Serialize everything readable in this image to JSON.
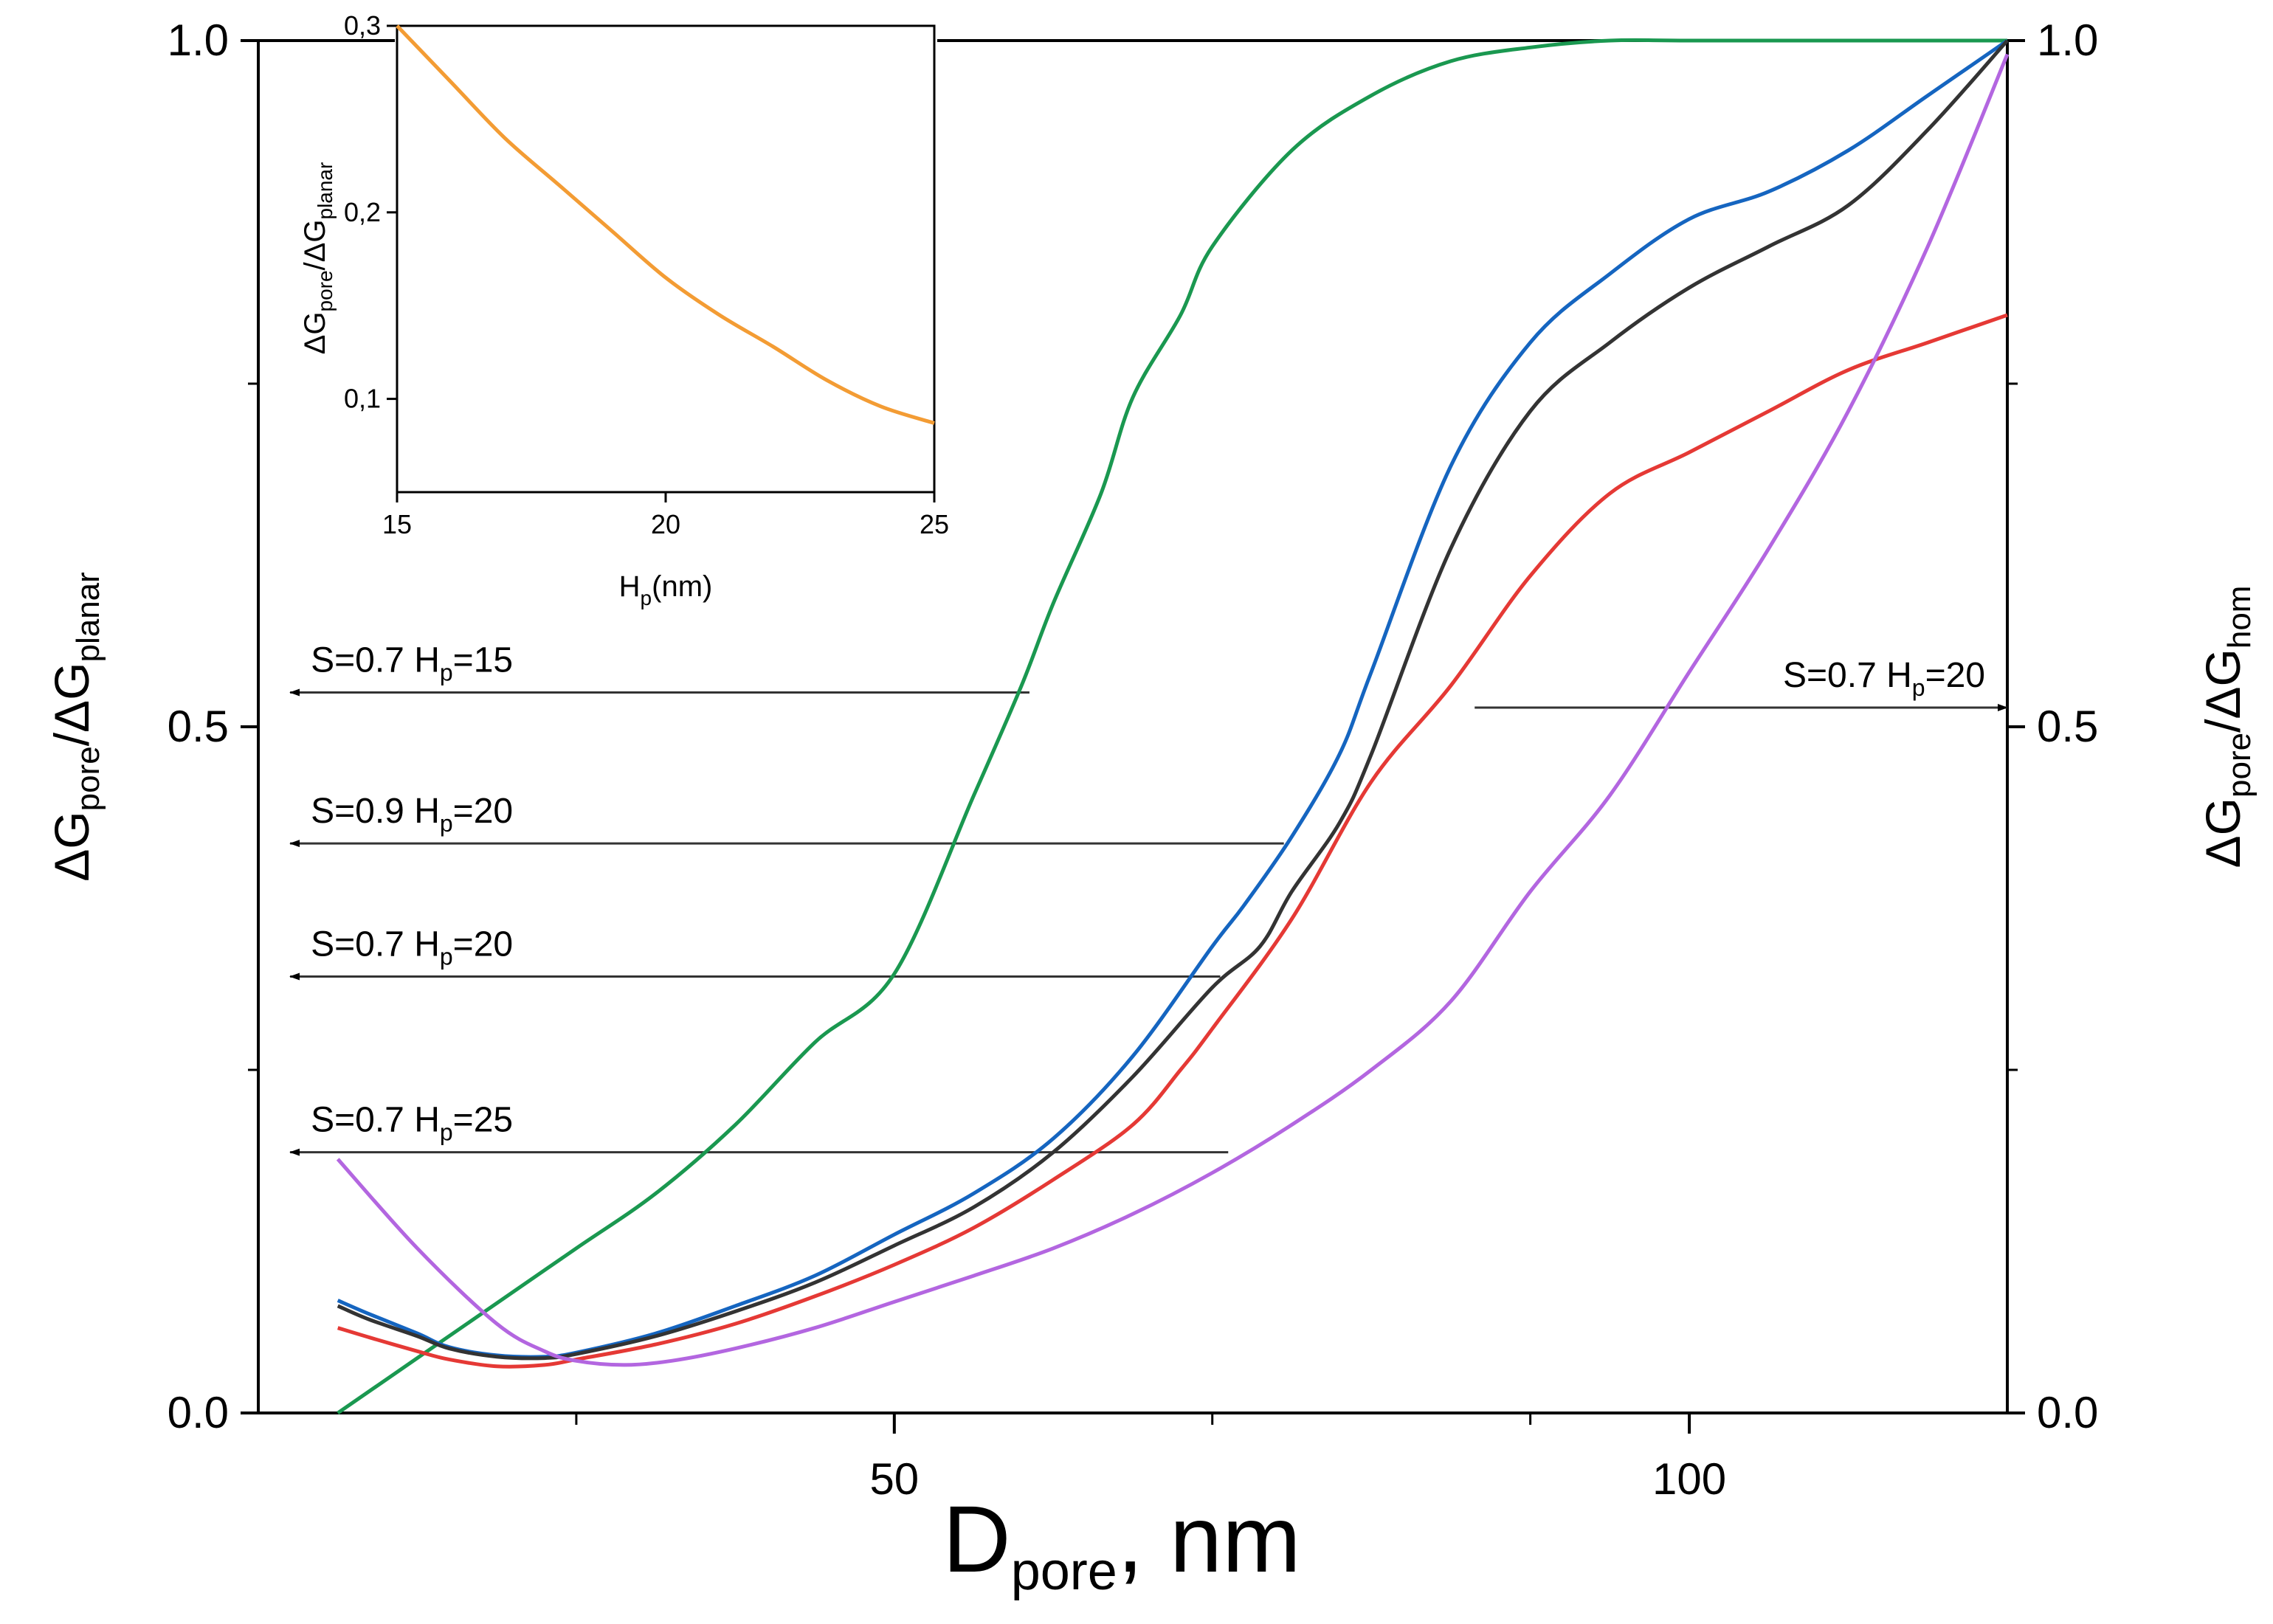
{
  "chart_data": [
    {
      "type": "line",
      "xlabel": {
        "main": "D",
        "sub": "pore",
        "rest": ", nm"
      },
      "ylabel_left": {
        "p1": "ΔG",
        "s1": "pore",
        "p2": "/ΔG",
        "s2": "planar"
      },
      "ylabel_right": {
        "p1": "ΔG",
        "s1": "pore",
        "p2": "/ΔG",
        "s2": "hom"
      },
      "xlim": [
        10,
        120
      ],
      "ylim": [
        0.0,
        1.0
      ],
      "x_major_ticks": [
        50,
        100
      ],
      "x_minor_ticks": [
        30,
        70,
        90
      ],
      "y_ticks": [
        0.0,
        0.5,
        1.0
      ],
      "y_minor_ticks": [
        0.25,
        0.75
      ],
      "x_tick_labels": [
        "50",
        "100"
      ],
      "y_tick_labels_left": [
        "0.0",
        "0.5",
        "1.0"
      ],
      "y_tick_labels_right": [
        "0.0",
        "0.5",
        "1.0"
      ],
      "series": [
        {
          "name": "green",
          "color": "#1a9850",
          "x": [
            15,
            20,
            25,
            30,
            35,
            40,
            45,
            50,
            55,
            58,
            60,
            63,
            65,
            68,
            70,
            75,
            80,
            85,
            90,
            95,
            100,
            110,
            120
          ],
          "y": [
            0.0,
            0.04,
            0.08,
            0.12,
            0.16,
            0.21,
            0.27,
            0.32,
            0.45,
            0.53,
            0.59,
            0.67,
            0.74,
            0.8,
            0.85,
            0.92,
            0.96,
            0.985,
            0.995,
            1.0,
            1.0,
            1.0,
            1.0
          ]
        },
        {
          "name": "blue",
          "color": "#1565c0",
          "x": [
            15,
            17,
            20,
            22,
            25,
            28,
            30,
            35,
            40,
            45,
            50,
            55,
            60,
            65,
            70,
            72,
            75,
            78,
            80,
            85,
            90,
            95,
            100,
            105,
            110,
            115,
            120
          ],
          "y": [
            0.082,
            0.072,
            0.058,
            0.048,
            0.042,
            0.041,
            0.044,
            0.058,
            0.078,
            0.1,
            0.13,
            0.16,
            0.2,
            0.26,
            0.34,
            0.37,
            0.42,
            0.48,
            0.54,
            0.69,
            0.78,
            0.83,
            0.87,
            0.89,
            0.92,
            0.96,
            1.0
          ]
        },
        {
          "name": "black",
          "color": "#333333",
          "x": [
            15,
            17,
            20,
            22,
            25,
            28,
            30,
            35,
            40,
            45,
            50,
            55,
            60,
            65,
            70,
            73,
            75,
            78,
            80,
            85,
            90,
            95,
            100,
            105,
            110,
            115,
            120
          ],
          "y": [
            0.078,
            0.068,
            0.056,
            0.047,
            0.041,
            0.04,
            0.043,
            0.056,
            0.074,
            0.095,
            0.122,
            0.15,
            0.19,
            0.245,
            0.31,
            0.34,
            0.38,
            0.43,
            0.48,
            0.63,
            0.73,
            0.78,
            0.82,
            0.85,
            0.88,
            0.935,
            1.0
          ]
        },
        {
          "name": "red",
          "color": "#e53935",
          "x": [
            15,
            17,
            20,
            22,
            25,
            28,
            30,
            35,
            40,
            45,
            50,
            55,
            60,
            65,
            68,
            70,
            75,
            80,
            85,
            90,
            95,
            100,
            105,
            110,
            115,
            120
          ],
          "y": [
            0.062,
            0.055,
            0.045,
            0.039,
            0.034,
            0.035,
            0.039,
            0.05,
            0.065,
            0.085,
            0.108,
            0.135,
            0.17,
            0.21,
            0.25,
            0.28,
            0.36,
            0.46,
            0.53,
            0.61,
            0.67,
            0.7,
            0.73,
            0.76,
            0.78,
            0.8
          ]
        },
        {
          "name": "purple",
          "color": "#b366e0",
          "x": [
            15,
            20,
            25,
            28,
            30,
            33,
            36,
            40,
            45,
            50,
            55,
            60,
            65,
            70,
            75,
            80,
            85,
            90,
            95,
            100,
            105,
            110,
            115,
            120
          ],
          "y": [
            0.185,
            0.12,
            0.065,
            0.045,
            0.038,
            0.035,
            0.038,
            0.047,
            0.062,
            0.081,
            0.1,
            0.12,
            0.145,
            0.175,
            0.21,
            0.25,
            0.3,
            0.38,
            0.45,
            0.54,
            0.63,
            0.73,
            0.85,
            0.99
          ]
        }
      ],
      "annotations": [
        {
          "label": "S=0.7 H",
          "sub": "p",
          "tail": "=15",
          "y": 0.525,
          "x_from": 58.5,
          "x_to": 12,
          "side": "left"
        },
        {
          "label": "S=0.9 H",
          "sub": "p",
          "tail": "=20",
          "y": 0.415,
          "x_from": 74.5,
          "x_to": 12,
          "side": "left"
        },
        {
          "label": "S=0.7 H",
          "sub": "p",
          "tail": "=20",
          "y": 0.318,
          "x_from": 70.5,
          "x_to": 12,
          "side": "left"
        },
        {
          "label": "S=0.7 H",
          "sub": "p",
          "tail": "=25",
          "y": 0.19,
          "x_from": 71,
          "x_to": 12,
          "side": "left"
        },
        {
          "label": "S=0.7 H",
          "sub": "p",
          "tail": "=20",
          "y": 0.514,
          "x_from": 86.5,
          "x_to": 120,
          "side": "right"
        }
      ]
    },
    {
      "type": "line",
      "inset": true,
      "xlabel": {
        "main": "H",
        "sub": "p",
        "rest": "(nm)"
      },
      "ylabel": {
        "p1": "ΔG",
        "s1": "pore",
        "p2": "/ΔG",
        "s2": "planar"
      },
      "xlim": [
        15,
        25
      ],
      "ylim": [
        0.05,
        0.3
      ],
      "x_ticks": [
        15,
        20,
        25
      ],
      "x_tick_labels": [
        "15",
        "20",
        "25"
      ],
      "y_ticks": [
        0.1,
        0.2,
        0.3
      ],
      "y_tick_labels": [
        "0,1",
        "0,2",
        "0,3"
      ],
      "series": [
        {
          "name": "orange",
          "color": "#f39c34",
          "x": [
            15,
            16,
            17,
            18,
            19,
            20,
            21,
            22,
            23,
            24,
            25
          ],
          "y": [
            0.3,
            0.27,
            0.24,
            0.215,
            0.19,
            0.165,
            0.145,
            0.128,
            0.11,
            0.096,
            0.087
          ]
        }
      ]
    }
  ]
}
